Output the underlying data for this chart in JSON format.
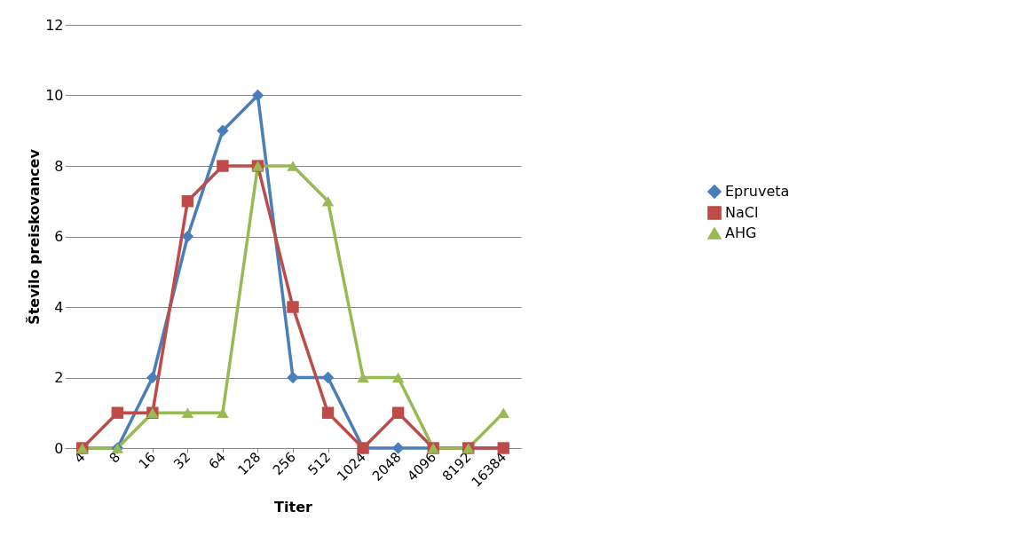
{
  "chart_data": {
    "type": "line",
    "xlabel": "Titer",
    "ylabel": "Število preiskovancev",
    "categories": [
      "4",
      "8",
      "16",
      "32",
      "64",
      "128",
      "256",
      "512",
      "1024",
      "2048",
      "4096",
      "8192",
      "16384"
    ],
    "series": [
      {
        "name": "Epruveta",
        "color": "#4a7ebb",
        "marker": "diamond",
        "values": [
          0,
          0,
          2,
          6,
          9,
          10,
          2,
          2,
          0,
          0,
          0,
          0,
          0
        ]
      },
      {
        "name": "NaCl",
        "color": "#be4b48",
        "marker": "square",
        "values": [
          0,
          1,
          1,
          7,
          8,
          8,
          4,
          1,
          0,
          1,
          0,
          0,
          0
        ]
      },
      {
        "name": "AHG",
        "color": "#98b954",
        "marker": "triangle",
        "values": [
          0,
          0,
          1,
          1,
          1,
          8,
          8,
          7,
          2,
          2,
          0,
          0,
          1
        ]
      }
    ],
    "ylim": [
      0,
      12
    ],
    "yticks": [
      0,
      2,
      4,
      6,
      8,
      10,
      12
    ],
    "grid": "y",
    "legend": "right",
    "line_style": "solid"
  }
}
